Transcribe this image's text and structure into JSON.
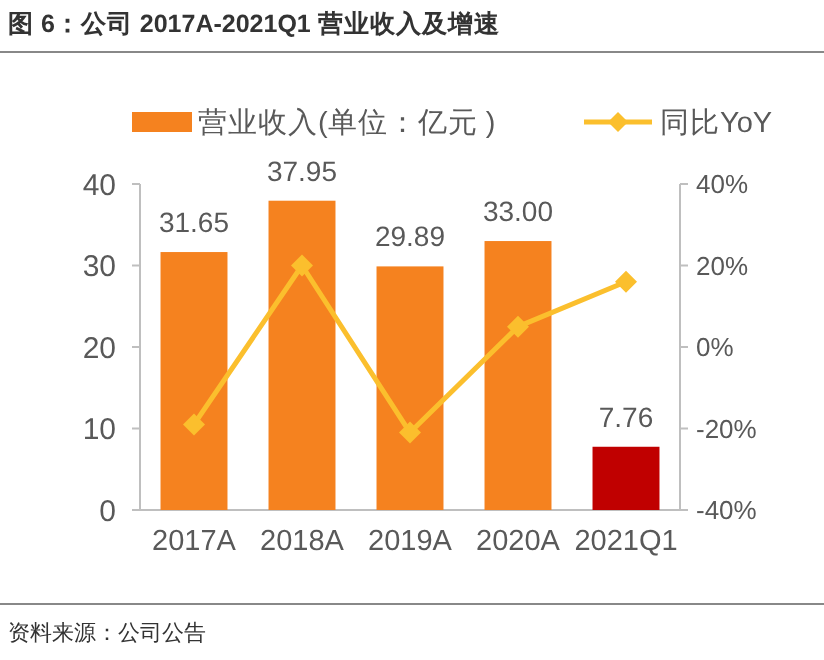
{
  "chart_data": {
    "type": "bar",
    "title": "图 6：公司 2017A-2021Q1 营业收入及增速",
    "categories": [
      "2017A",
      "2018A",
      "2019A",
      "2020A",
      "2021Q1"
    ],
    "series": [
      {
        "name": "营业收入(单位：亿元 )",
        "color": "#f5821f",
        "colors": [
          "#f5821f",
          "#f5821f",
          "#f5821f",
          "#f5821f",
          "#c00000"
        ],
        "values": [
          31.65,
          37.95,
          29.89,
          33.0,
          7.76
        ],
        "value_labels": [
          "31.65",
          "37.95",
          "29.89",
          "33.00",
          "7.76"
        ]
      },
      {
        "name": "同比YoY",
        "type": "line",
        "axis": "y2",
        "color": "#fbbf2d",
        "marker": "diamond",
        "values": [
          -19,
          20,
          -21,
          5,
          16
        ]
      }
    ],
    "ylim": [
      0,
      40
    ],
    "yticks": [
      0,
      10,
      20,
      30,
      40
    ],
    "y2lim": [
      -40,
      40
    ],
    "y2ticks": [
      {
        "value": -40,
        "label": "-40%"
      },
      {
        "value": -20,
        "label": "-20%"
      },
      {
        "value": 0,
        "label": "0%"
      },
      {
        "value": 20,
        "label": "20%"
      },
      {
        "value": 40,
        "label": "40%"
      }
    ],
    "grid": false,
    "legend": "top",
    "annotations": [
      "资料来源：公司公告"
    ]
  }
}
